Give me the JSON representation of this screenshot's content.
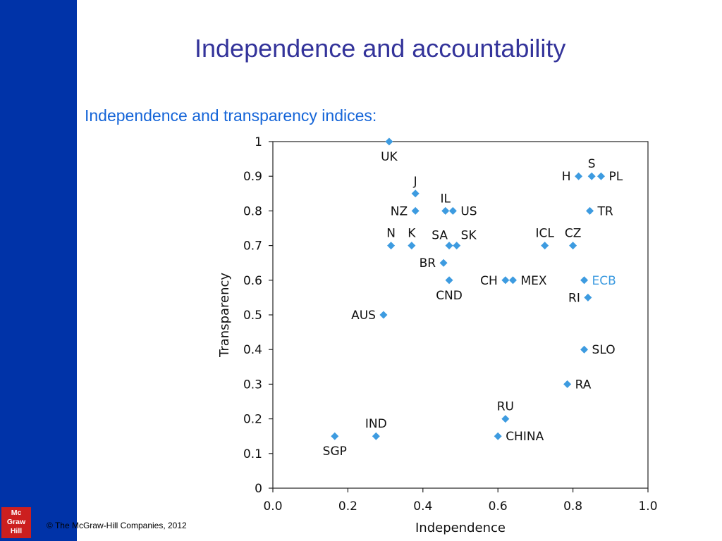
{
  "slide": {
    "title": "Independence and accountability",
    "subtitle": "Independence and transparency indices:",
    "copyright": "© The McGraw-Hill Companies, 2012",
    "logo_lines": [
      "Mc",
      "Graw",
      "Hill"
    ]
  },
  "colors": {
    "sidebar": "#0033a8",
    "title": "#33339a",
    "subtitle": "#1565d8",
    "marker": "#3d9be0",
    "ecb_label": "#3d9be0",
    "logo": "#cc1f1f"
  },
  "chart_data": {
    "type": "scatter",
    "xlabel": "Independence",
    "ylabel": "Transparency",
    "xlim": [
      0,
      1
    ],
    "ylim": [
      0,
      1
    ],
    "xticks": [
      "0.0",
      "0.2",
      "0.4",
      "0.6",
      "0.8",
      "1.0"
    ],
    "yticks": [
      "0",
      "0.1",
      "0.2",
      "0.3",
      "0.4",
      "0.5",
      "0.6",
      "0.7",
      "0.8",
      "0.9",
      "1"
    ],
    "grid": false,
    "points": [
      {
        "label": "UK",
        "x": 0.31,
        "y": 1.0,
        "pos": "below"
      },
      {
        "label": "J",
        "x": 0.38,
        "y": 0.85,
        "pos": "above"
      },
      {
        "label": "NZ",
        "x": 0.38,
        "y": 0.8,
        "pos": "left"
      },
      {
        "label": "IL",
        "x": 0.46,
        "y": 0.8,
        "pos": "above"
      },
      {
        "label": "US",
        "x": 0.48,
        "y": 0.8,
        "pos": "right"
      },
      {
        "label": "N",
        "x": 0.315,
        "y": 0.7,
        "pos": "above"
      },
      {
        "label": "K",
        "x": 0.37,
        "y": 0.7,
        "pos": "above"
      },
      {
        "label": "SA",
        "x": 0.47,
        "y": 0.7,
        "pos": "above-left"
      },
      {
        "label": "SK",
        "x": 0.49,
        "y": 0.7,
        "pos": "above-right"
      },
      {
        "label": "BR",
        "x": 0.455,
        "y": 0.65,
        "pos": "left"
      },
      {
        "label": "CND",
        "x": 0.47,
        "y": 0.6,
        "pos": "below"
      },
      {
        "label": "CH",
        "x": 0.62,
        "y": 0.6,
        "pos": "left"
      },
      {
        "label": "MEX",
        "x": 0.64,
        "y": 0.6,
        "pos": "right"
      },
      {
        "label": "ICL",
        "x": 0.725,
        "y": 0.7,
        "pos": "above"
      },
      {
        "label": "CZ",
        "x": 0.8,
        "y": 0.7,
        "pos": "above"
      },
      {
        "label": "H",
        "x": 0.815,
        "y": 0.9,
        "pos": "left"
      },
      {
        "label": "S",
        "x": 0.85,
        "y": 0.9,
        "pos": "above"
      },
      {
        "label": "PL",
        "x": 0.875,
        "y": 0.9,
        "pos": "right"
      },
      {
        "label": "TR",
        "x": 0.845,
        "y": 0.8,
        "pos": "right"
      },
      {
        "label": "ECB",
        "x": 0.83,
        "y": 0.6,
        "pos": "right",
        "highlight": true
      },
      {
        "label": "RI",
        "x": 0.84,
        "y": 0.55,
        "pos": "left"
      },
      {
        "label": "SLO",
        "x": 0.83,
        "y": 0.4,
        "pos": "right"
      },
      {
        "label": "RA",
        "x": 0.785,
        "y": 0.3,
        "pos": "right"
      },
      {
        "label": "AUS",
        "x": 0.295,
        "y": 0.5,
        "pos": "left"
      },
      {
        "label": "RU",
        "x": 0.62,
        "y": 0.2,
        "pos": "above"
      },
      {
        "label": "CHINA",
        "x": 0.6,
        "y": 0.15,
        "pos": "right"
      },
      {
        "label": "IND",
        "x": 0.275,
        "y": 0.15,
        "pos": "above"
      },
      {
        "label": "SGP",
        "x": 0.165,
        "y": 0.15,
        "pos": "below"
      }
    ]
  }
}
